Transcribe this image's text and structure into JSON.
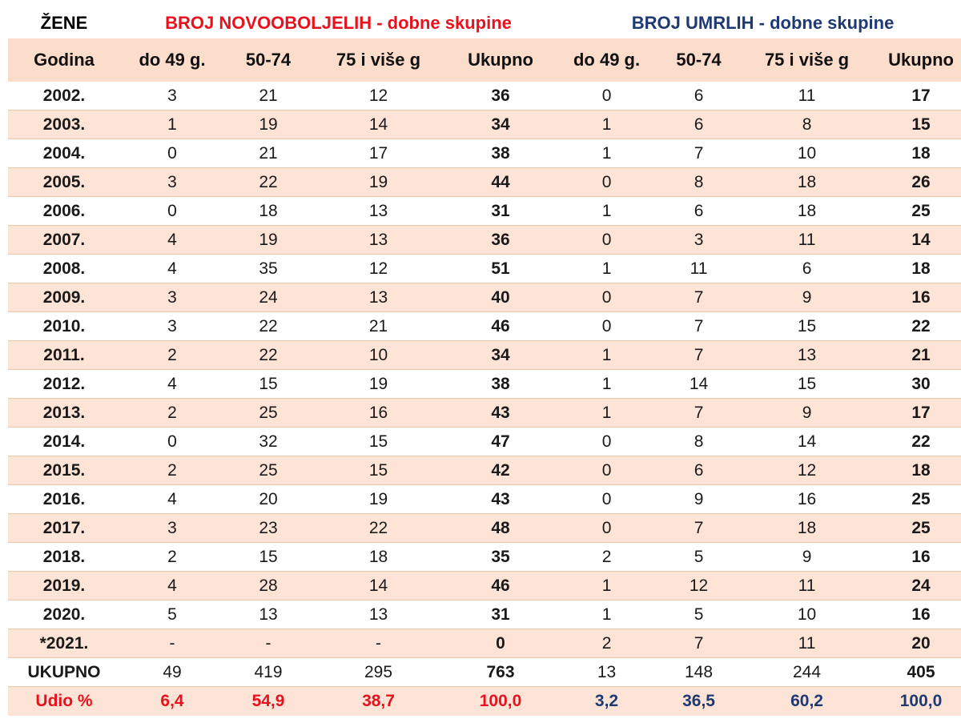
{
  "title": {
    "group": "ŽENE",
    "incidence": "BROJ NOVOOBOLJELIH - dobne skupine",
    "mortality": "BROJ UMRLIH - dobne skupine"
  },
  "headers": [
    "Godina",
    "do 49 g.",
    "50-74",
    "75 i više g",
    "Ukupno",
    "do 49 g.",
    "50-74",
    "75 i više g",
    "Ukupno"
  ],
  "rows": [
    [
      "2002.",
      "3",
      "21",
      "12",
      "36",
      "0",
      "6",
      "11",
      "17"
    ],
    [
      "2003.",
      "1",
      "19",
      "14",
      "34",
      "1",
      "6",
      "8",
      "15"
    ],
    [
      "2004.",
      "0",
      "21",
      "17",
      "38",
      "1",
      "7",
      "10",
      "18"
    ],
    [
      "2005.",
      "3",
      "22",
      "19",
      "44",
      "0",
      "8",
      "18",
      "26"
    ],
    [
      "2006.",
      "0",
      "18",
      "13",
      "31",
      "1",
      "6",
      "18",
      "25"
    ],
    [
      "2007.",
      "4",
      "19",
      "13",
      "36",
      "0",
      "3",
      "11",
      "14"
    ],
    [
      "2008.",
      "4",
      "35",
      "12",
      "51",
      "1",
      "11",
      "6",
      "18"
    ],
    [
      "2009.",
      "3",
      "24",
      "13",
      "40",
      "0",
      "7",
      "9",
      "16"
    ],
    [
      "2010.",
      "3",
      "22",
      "21",
      "46",
      "0",
      "7",
      "15",
      "22"
    ],
    [
      "2011.",
      "2",
      "22",
      "10",
      "34",
      "1",
      "7",
      "13",
      "21"
    ],
    [
      "2012.",
      "4",
      "15",
      "19",
      "38",
      "1",
      "14",
      "15",
      "30"
    ],
    [
      "2013.",
      "2",
      "25",
      "16",
      "43",
      "1",
      "7",
      "9",
      "17"
    ],
    [
      "2014.",
      "0",
      "32",
      "15",
      "47",
      "0",
      "8",
      "14",
      "22"
    ],
    [
      "2015.",
      "2",
      "25",
      "15",
      "42",
      "0",
      "6",
      "12",
      "18"
    ],
    [
      "2016.",
      "4",
      "20",
      "19",
      "43",
      "0",
      "9",
      "16",
      "25"
    ],
    [
      "2017.",
      "3",
      "23",
      "22",
      "48",
      "0",
      "7",
      "18",
      "25"
    ],
    [
      "2018.",
      "2",
      "15",
      "18",
      "35",
      "2",
      "5",
      "9",
      "16"
    ],
    [
      "2019.",
      "4",
      "28",
      "14",
      "46",
      "1",
      "12",
      "11",
      "24"
    ],
    [
      "2020.",
      "5",
      "13",
      "13",
      "31",
      "1",
      "5",
      "10",
      "16"
    ],
    [
      "*2021.",
      "-",
      "-",
      "-",
      "0",
      "2",
      "7",
      "11",
      "20"
    ]
  ],
  "total": [
    "UKUPNO",
    "49",
    "419",
    "295",
    "763",
    "13",
    "148",
    "244",
    "405"
  ],
  "share": [
    "Udio %",
    "6,4",
    "54,9",
    "38,7",
    "100,0",
    "3,2",
    "36,5",
    "60,2",
    "100,0"
  ],
  "colors": {
    "incidence_title": "#e8121e",
    "mortality_title": "#1f3a73",
    "header_fill": "#fcdccb",
    "stripe_fill": "#fde4d6"
  }
}
